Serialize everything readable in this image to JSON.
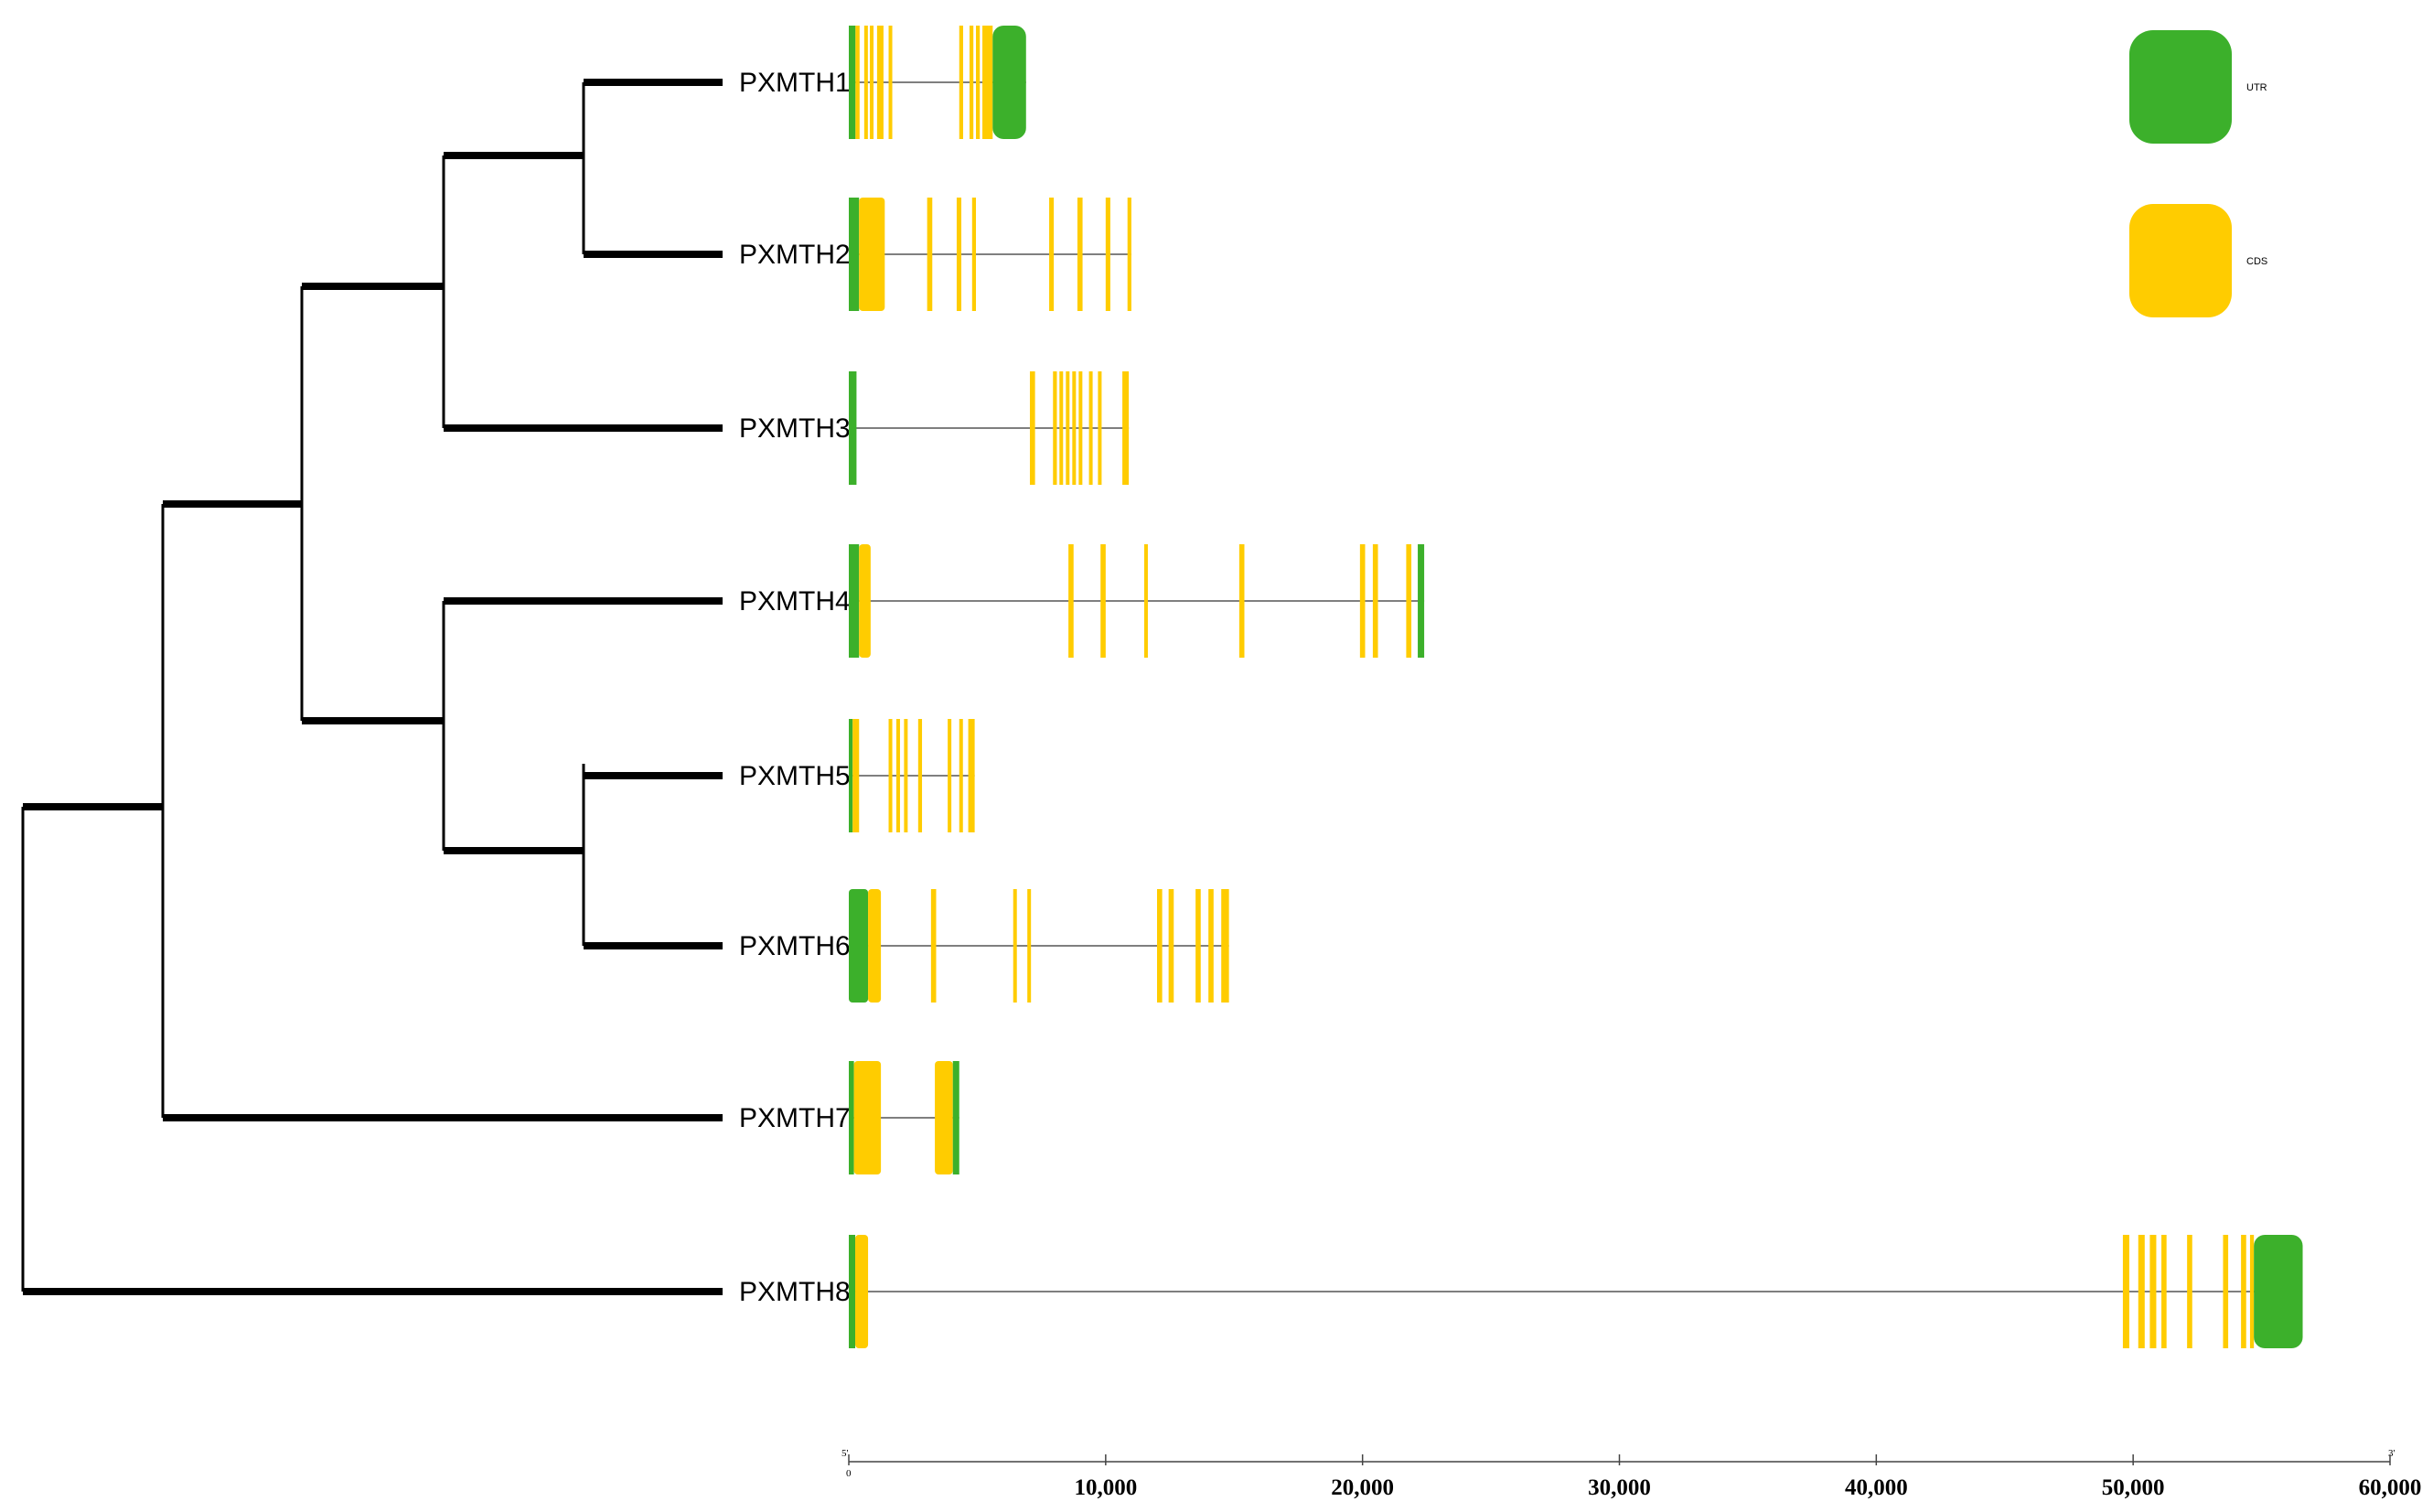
{
  "colors": {
    "utr": "#3cb02b",
    "cds": "#ffcc00",
    "tree": "#000000",
    "intron": "#555555"
  },
  "tree": {
    "leaves": [
      "PXMTH1",
      "PXMTH2",
      "PXMTH3",
      "PXMTH4",
      "PXMTH5",
      "PXMTH6",
      "PXMTH7",
      "PXMTH8"
    ],
    "topology": "(((((PXMTH1,PXMTH2),PXMTH3),((PXMTH4),(PXMTH5,PXMTH6))),PXMTH7),PXMTH8)"
  },
  "legend": [
    {
      "key": "utr",
      "label": "UTR"
    },
    {
      "key": "cds",
      "label": "CDS"
    }
  ],
  "axis": {
    "min": 0,
    "max": 60000,
    "start_label": "5'",
    "end_label": "3'",
    "zero_label": "0",
    "ticks": [
      {
        "value": 10000,
        "label": "10,000"
      },
      {
        "value": 20000,
        "label": "20,000"
      },
      {
        "value": 30000,
        "label": "30,000"
      },
      {
        "value": 40000,
        "label": "40,000"
      },
      {
        "value": 50000,
        "label": "50,000"
      },
      {
        "value": 60000,
        "label": "60,000"
      }
    ]
  },
  "genes": [
    {
      "name": "PXMTH1",
      "length": 6900,
      "features": [
        {
          "type": "utr",
          "start": 0,
          "end": 260
        },
        {
          "type": "cds",
          "start": 260,
          "end": 420
        },
        {
          "type": "cds",
          "start": 600,
          "end": 700
        },
        {
          "type": "cds",
          "start": 820,
          "end": 920
        },
        {
          "type": "cds",
          "start": 1100,
          "end": 1350
        },
        {
          "type": "cds",
          "start": 1550,
          "end": 1640
        },
        {
          "type": "cds",
          "start": 4300,
          "end": 4450
        },
        {
          "type": "cds",
          "start": 4700,
          "end": 4850
        },
        {
          "type": "cds",
          "start": 4950,
          "end": 5100
        },
        {
          "type": "cds",
          "start": 5200,
          "end": 5600
        },
        {
          "type": "utr",
          "start": 5600,
          "end": 6900
        }
      ]
    },
    {
      "name": "PXMTH2",
      "length": 11000,
      "features": [
        {
          "type": "utr",
          "start": 0,
          "end": 400
        },
        {
          "type": "cds",
          "start": 400,
          "end": 1400
        },
        {
          "type": "cds",
          "start": 3050,
          "end": 3250
        },
        {
          "type": "cds",
          "start": 4200,
          "end": 4380
        },
        {
          "type": "cds",
          "start": 4800,
          "end": 4950
        },
        {
          "type": "cds",
          "start": 7800,
          "end": 7980
        },
        {
          "type": "cds",
          "start": 8900,
          "end": 9100
        },
        {
          "type": "cds",
          "start": 10000,
          "end": 10180
        },
        {
          "type": "cds",
          "start": 10850,
          "end": 11000
        }
      ]
    },
    {
      "name": "PXMTH3",
      "length": 10900,
      "features": [
        {
          "type": "utr",
          "start": 0,
          "end": 300
        },
        {
          "type": "cds",
          "start": 7050,
          "end": 7250
        },
        {
          "type": "cds",
          "start": 7950,
          "end": 8100
        },
        {
          "type": "cds",
          "start": 8200,
          "end": 8330
        },
        {
          "type": "cds",
          "start": 8450,
          "end": 8580
        },
        {
          "type": "cds",
          "start": 8700,
          "end": 8830
        },
        {
          "type": "cds",
          "start": 8950,
          "end": 9080
        },
        {
          "type": "cds",
          "start": 9350,
          "end": 9480
        },
        {
          "type": "cds",
          "start": 9700,
          "end": 9830
        },
        {
          "type": "cds",
          "start": 10650,
          "end": 10900
        }
      ]
    },
    {
      "name": "PXMTH4",
      "length": 22400,
      "features": [
        {
          "type": "utr",
          "start": 0,
          "end": 400
        },
        {
          "type": "cds",
          "start": 400,
          "end": 850
        },
        {
          "type": "cds",
          "start": 8550,
          "end": 8750
        },
        {
          "type": "cds",
          "start": 9800,
          "end": 10000
        },
        {
          "type": "cds",
          "start": 11500,
          "end": 11620
        },
        {
          "type": "cds",
          "start": 15200,
          "end": 15400
        },
        {
          "type": "cds",
          "start": 19900,
          "end": 20100
        },
        {
          "type": "cds",
          "start": 20400,
          "end": 20600
        },
        {
          "type": "cds",
          "start": 21700,
          "end": 21900
        },
        {
          "type": "utr",
          "start": 22150,
          "end": 22400
        }
      ]
    },
    {
      "name": "PXMTH5",
      "length": 4900,
      "features": [
        {
          "type": "utr",
          "start": 0,
          "end": 150
        },
        {
          "type": "cds",
          "start": 150,
          "end": 400
        },
        {
          "type": "cds",
          "start": 1550,
          "end": 1680
        },
        {
          "type": "cds",
          "start": 1850,
          "end": 1980
        },
        {
          "type": "cds",
          "start": 2150,
          "end": 2280
        },
        {
          "type": "cds",
          "start": 2700,
          "end": 2850
        },
        {
          "type": "cds",
          "start": 3850,
          "end": 3980
        },
        {
          "type": "cds",
          "start": 4300,
          "end": 4430
        },
        {
          "type": "cds",
          "start": 4650,
          "end": 4900
        }
      ]
    },
    {
      "name": "PXMTH6",
      "length": 14800,
      "features": [
        {
          "type": "utr",
          "start": 0,
          "end": 750
        },
        {
          "type": "cds",
          "start": 750,
          "end": 1250
        },
        {
          "type": "cds",
          "start": 3200,
          "end": 3400
        },
        {
          "type": "cds",
          "start": 6400,
          "end": 6530
        },
        {
          "type": "cds",
          "start": 6950,
          "end": 7080
        },
        {
          "type": "cds",
          "start": 12000,
          "end": 12200
        },
        {
          "type": "cds",
          "start": 12450,
          "end": 12650
        },
        {
          "type": "cds",
          "start": 13500,
          "end": 13700
        },
        {
          "type": "cds",
          "start": 14000,
          "end": 14200
        },
        {
          "type": "cds",
          "start": 14500,
          "end": 14800
        }
      ]
    },
    {
      "name": "PXMTH7",
      "length": 4300,
      "features": [
        {
          "type": "utr",
          "start": 0,
          "end": 200
        },
        {
          "type": "cds",
          "start": 200,
          "end": 1250
        },
        {
          "type": "cds",
          "start": 3350,
          "end": 4050
        },
        {
          "type": "utr",
          "start": 4050,
          "end": 4300
        }
      ]
    },
    {
      "name": "PXMTH8",
      "length": 56600,
      "features": [
        {
          "type": "utr",
          "start": 0,
          "end": 250
        },
        {
          "type": "cds",
          "start": 250,
          "end": 750
        },
        {
          "type": "cds",
          "start": 49600,
          "end": 49850
        },
        {
          "type": "cds",
          "start": 50200,
          "end": 50450
        },
        {
          "type": "cds",
          "start": 50650,
          "end": 50900
        },
        {
          "type": "cds",
          "start": 51100,
          "end": 51300
        },
        {
          "type": "cds",
          "start": 52100,
          "end": 52300
        },
        {
          "type": "cds",
          "start": 53500,
          "end": 53700
        },
        {
          "type": "cds",
          "start": 54200,
          "end": 54400
        },
        {
          "type": "cds",
          "start": 54550,
          "end": 54700
        },
        {
          "type": "utr",
          "start": 54700,
          "end": 56600
        }
      ]
    }
  ]
}
